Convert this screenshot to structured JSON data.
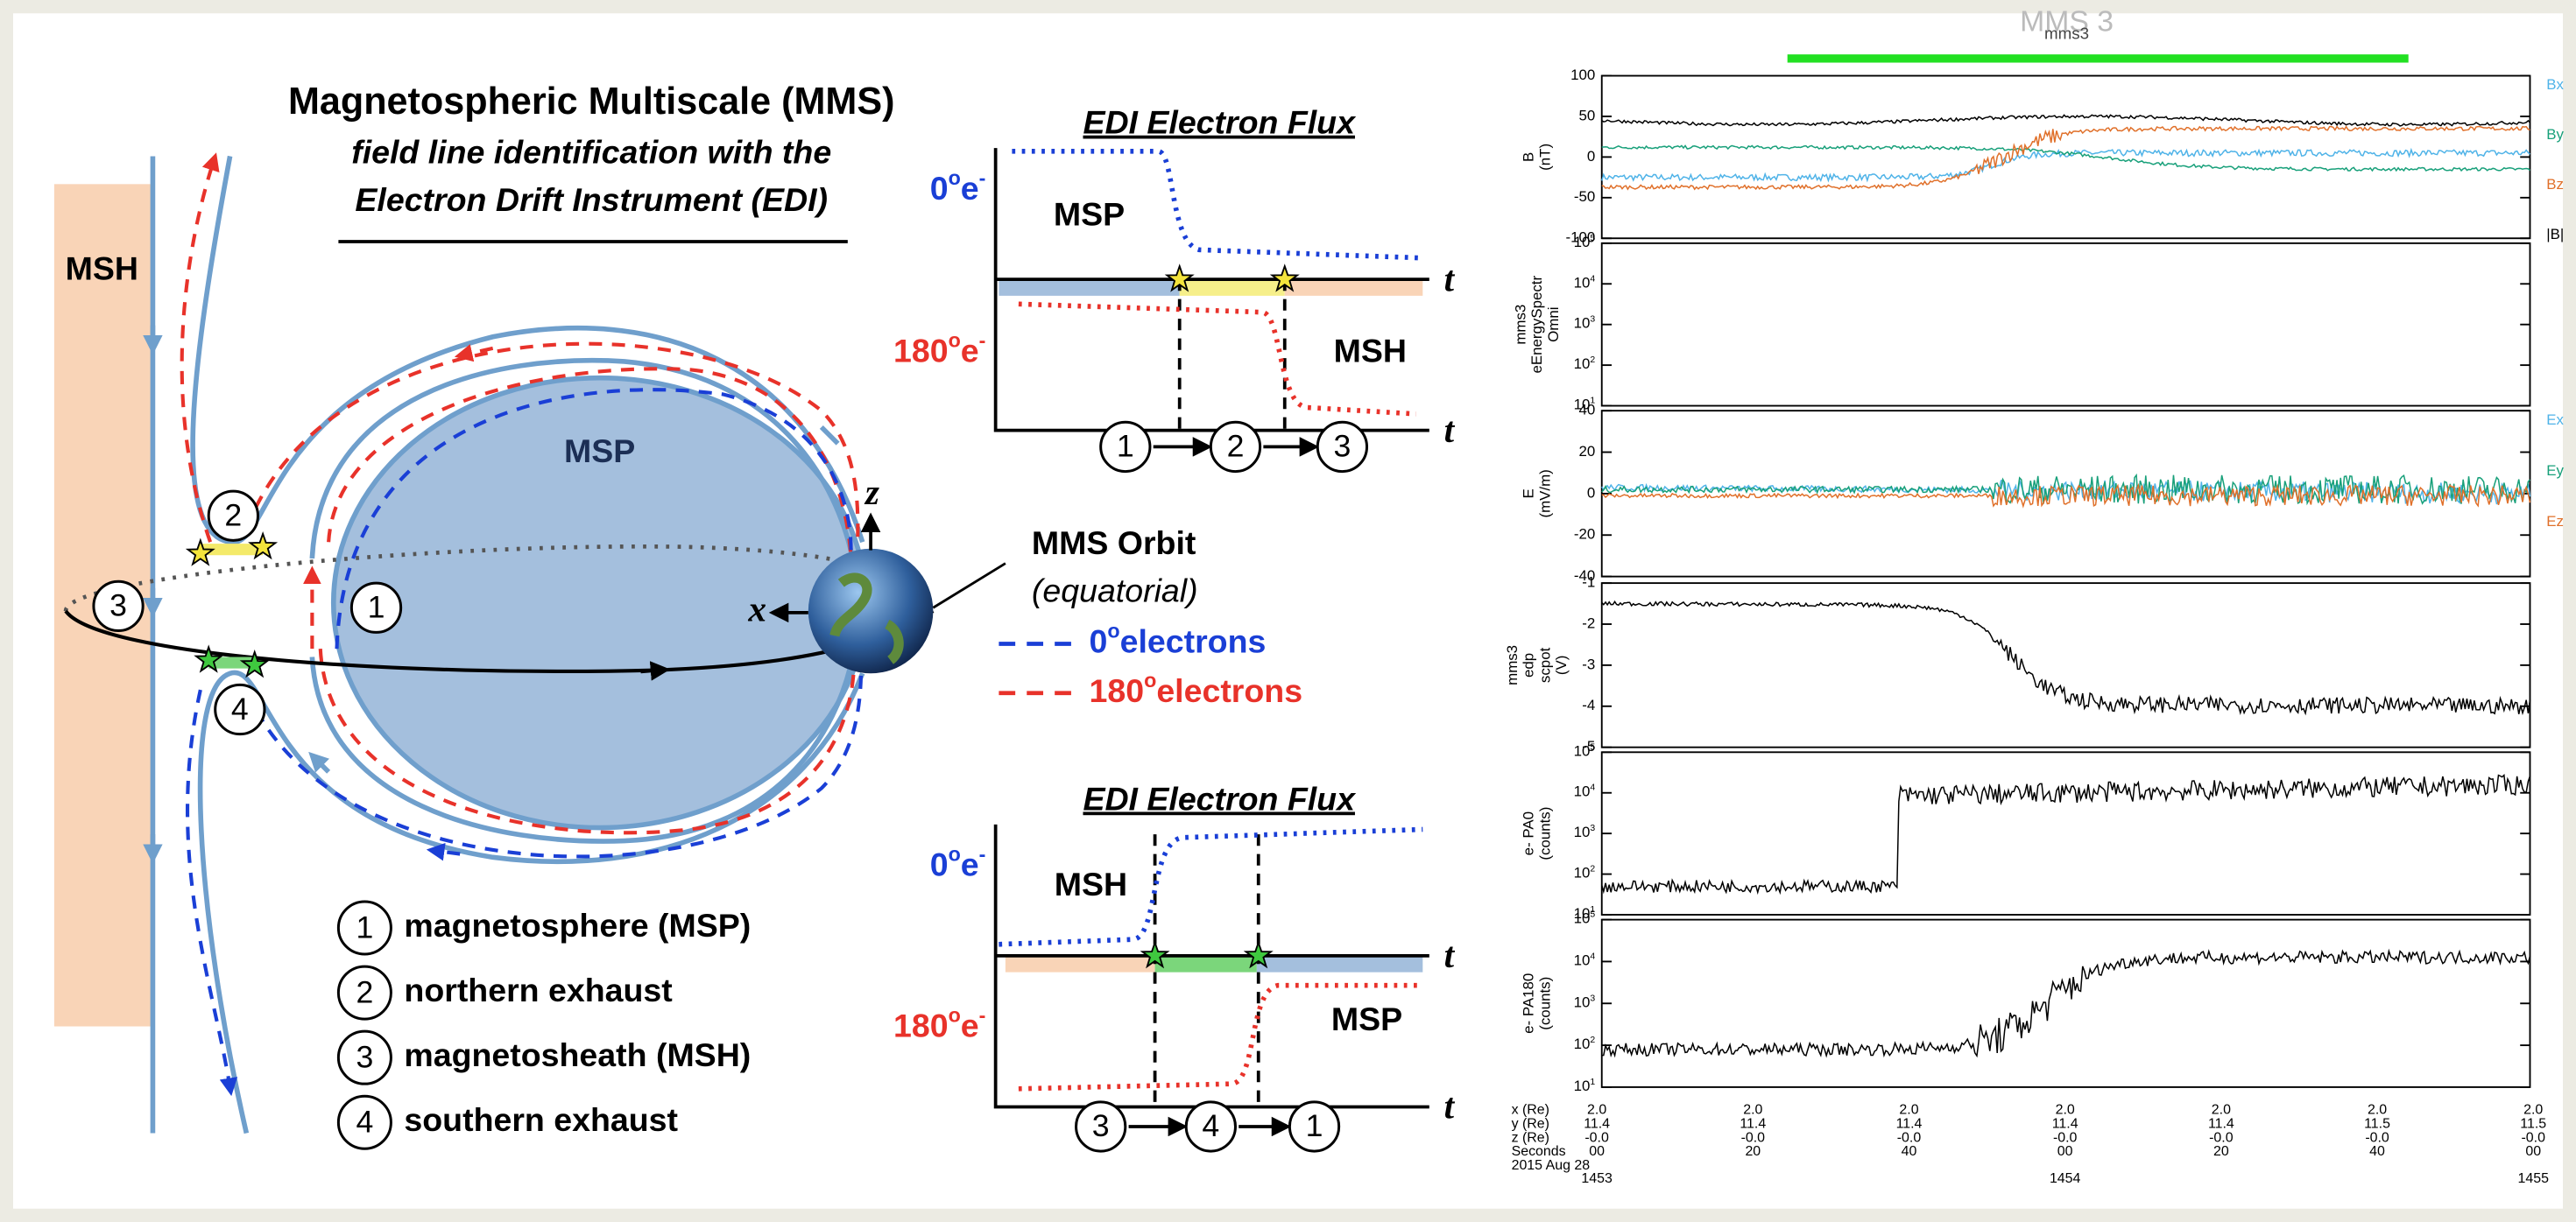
{
  "header": {
    "title": "Magnetospheric Multiscale (MMS)",
    "subtitle_lines": [
      "field line identification with the",
      "Electron Drift Instrument (EDI)"
    ]
  },
  "diagram": {
    "msh_label": "MSH",
    "msp_label": "MSP",
    "axis_z": "z",
    "axis_x": "x",
    "marker_numbers": [
      "1",
      "2",
      "3",
      "4"
    ],
    "orbit": {
      "title": "MMS Orbit",
      "note": "(equatorial)"
    },
    "electron_legend": [
      {
        "angle": "0",
        "degree": "o",
        "label": "electrons"
      },
      {
        "angle": "180",
        "degree": "o",
        "label": "electrons"
      }
    ],
    "region_list": [
      {
        "number": "1",
        "label": "magnetosphere (MSP)"
      },
      {
        "number": "2",
        "label": "northern exhaust"
      },
      {
        "number": "3",
        "label": "magnetosheath (MSH)"
      },
      {
        "number": "4",
        "label": "southern exhaust"
      }
    ]
  },
  "flux_panels": [
    {
      "title": "EDI Electron Flux",
      "axis_label": "t",
      "rows": [
        {
          "angle": "0",
          "degree": "o",
          "particle": "e",
          "charge": "-",
          "region": "MSP"
        },
        {
          "angle": "180",
          "degree": "o",
          "particle": "e",
          "charge": "-",
          "region": "MSH"
        }
      ],
      "sequence": [
        "1",
        "2",
        "3"
      ]
    },
    {
      "title": "EDI Electron Flux",
      "axis_label": "t",
      "rows": [
        {
          "angle": "0",
          "degree": "o",
          "particle": "e",
          "charge": "-",
          "region": "MSH"
        },
        {
          "angle": "180",
          "degree": "o",
          "particle": "e",
          "charge": "-",
          "region": "MSP"
        }
      ],
      "sequence": [
        "3",
        "4",
        "1"
      ]
    }
  ],
  "plot": {
    "title": "MMS 3",
    "subtitle": "mms3",
    "panels": [
      {
        "y_label": [
          "B",
          "(nT)"
        ],
        "ticks": [
          "100",
          "50",
          "0",
          "-50",
          "-100"
        ],
        "legend": [
          "Bx",
          "By",
          "Bz",
          "|B|"
        ]
      },
      {
        "y_label": [
          "mms3",
          "eEnergySpectr",
          "Omni"
        ],
        "ticks": [
          {
            "base": "10",
            "exp": "5"
          },
          {
            "base": "10",
            "exp": "4"
          },
          {
            "base": "10",
            "exp": "3"
          },
          {
            "base": "10",
            "exp": "2"
          },
          {
            "base": "10",
            "exp": "1"
          }
        ],
        "legend": []
      },
      {
        "y_label": [
          "E",
          "(mV/m)"
        ],
        "ticks": [
          "40",
          "20",
          "0",
          "-20",
          "-40"
        ],
        "legend": [
          "Ex",
          "Ey",
          "Ez"
        ]
      },
      {
        "y_label": [
          "mms3",
          "edp",
          "scpot",
          "(V)"
        ],
        "ticks": [
          "-1",
          "-2",
          "-3",
          "-4",
          "-5"
        ],
        "legend": []
      },
      {
        "y_label": [
          "e- PA0",
          "(counts)"
        ],
        "ticks": [
          {
            "base": "10",
            "exp": "5"
          },
          {
            "base": "10",
            "exp": "4"
          },
          {
            "base": "10",
            "exp": "3"
          },
          {
            "base": "10",
            "exp": "2"
          },
          {
            "base": "10",
            "exp": "1"
          }
        ],
        "legend": []
      },
      {
        "y_label": [
          "e- PA180",
          "(counts)"
        ],
        "ticks": [
          {
            "base": "10",
            "exp": "5"
          },
          {
            "base": "10",
            "exp": "4"
          },
          {
            "base": "10",
            "exp": "3"
          },
          {
            "base": "10",
            "exp": "2"
          },
          {
            "base": "10",
            "exp": "1"
          }
        ],
        "legend": []
      }
    ],
    "ephemeris": {
      "row_labels": [
        "x (Re)",
        "y (Re)",
        "z (Re)",
        "Seconds"
      ],
      "date": "2015 Aug 28",
      "columns": [
        [
          "2.0",
          "11.4",
          "-0.0",
          "00"
        ],
        [
          "2.0",
          "11.4",
          "-0.0",
          "20"
        ],
        [
          "2.0",
          "11.4",
          "-0.0",
          "40"
        ],
        [
          "2.0",
          "11.4",
          "-0.0",
          "00"
        ],
        [
          "2.0",
          "11.4",
          "-0.0",
          "20"
        ],
        [
          "2.0",
          "11.5",
          "-0.0",
          "40"
        ],
        [
          "2.0",
          "11.5",
          "-0.0",
          "00"
        ]
      ],
      "hours": [
        "1453",
        null,
        null,
        "1454",
        null,
        null,
        "1455"
      ]
    }
  }
}
